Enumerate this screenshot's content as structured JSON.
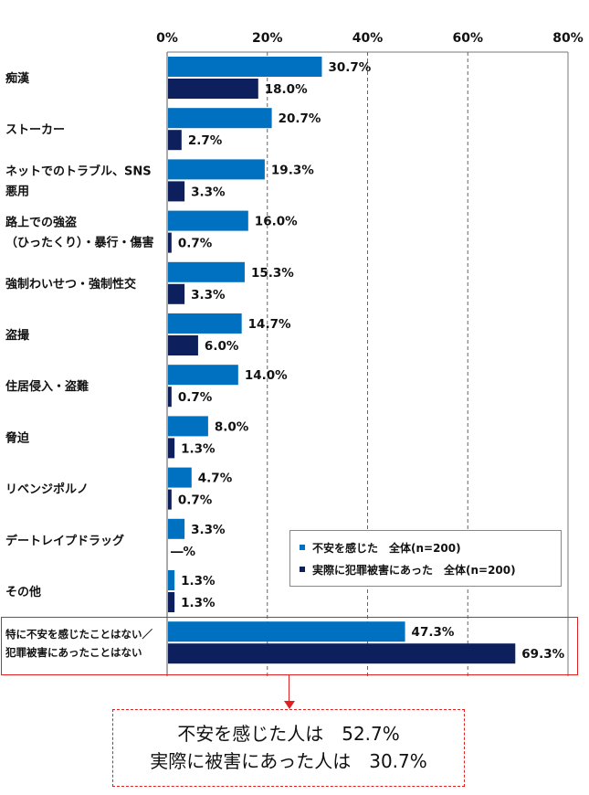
{
  "chart_data": {
    "type": "bar",
    "orientation": "horizontal",
    "xlim": [
      0,
      80
    ],
    "x_ticks": [
      "0%",
      "20%",
      "40%",
      "60%",
      "80%"
    ],
    "grid": "vertical dashed",
    "legend_position": "bottom-right",
    "categories": [
      [
        "痴漢"
      ],
      [
        "ストーカー"
      ],
      [
        "ネットでのトラブル、SNS",
        "悪用"
      ],
      [
        "路上での強盗",
        "（ひったくり）・暴行・傷害"
      ],
      [
        "強制わいせつ・強制性交"
      ],
      [
        "盗撮"
      ],
      [
        "住居侵入・盗難"
      ],
      [
        "脅迫"
      ],
      [
        "リベンジポルノ"
      ],
      [
        "デートレイプドラッグ"
      ],
      [
        "その他"
      ],
      [
        "特に不安を感じたことはない／",
        "犯罪被害にあったことはない"
      ]
    ],
    "series": [
      {
        "name": "不安を感じた　全体(n=200)",
        "color": "#0070c0",
        "values": [
          30.7,
          20.7,
          19.3,
          16.0,
          15.3,
          14.7,
          14.0,
          8.0,
          4.7,
          3.3,
          1.3,
          47.3
        ],
        "labels": [
          "30.7%",
          "20.7%",
          "19.3%",
          "16.0%",
          "15.3%",
          "14.7%",
          "14.0%",
          "8.0%",
          "4.7%",
          "3.3%",
          "1.3%",
          "47.3%"
        ]
      },
      {
        "name": "実際に犯罪被害にあった　全体(n=200)",
        "color": "#0d1f5c",
        "values": [
          18.0,
          2.7,
          3.3,
          0.7,
          3.3,
          6.0,
          0.7,
          1.3,
          0.7,
          0,
          1.3,
          69.3
        ],
        "labels": [
          "18.0%",
          "2.7%",
          "3.3%",
          "0.7%",
          "3.3%",
          "6.0%",
          "0.7%",
          "1.3%",
          "0.7%",
          "―%",
          "1.3%",
          "69.3%"
        ]
      }
    ]
  },
  "callout": {
    "line1": "不安を感じた人は　52.7%",
    "line2": "実際に被害にあった人は　30.7%"
  }
}
